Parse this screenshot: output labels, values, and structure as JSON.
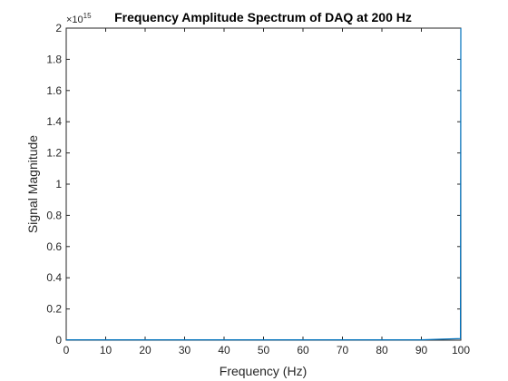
{
  "chart_data": {
    "type": "line",
    "title": "Frequency Amplitude Spectrum of DAQ at 200 Hz",
    "xlabel": "Frequency (Hz)",
    "ylabel": "Signal Magnitude",
    "exponent_label": "×10",
    "exponent_power": "15",
    "xlim": [
      0,
      100
    ],
    "ylim": [
      0,
      2
    ],
    "xticks": [
      0,
      10,
      20,
      30,
      40,
      50,
      60,
      70,
      80,
      90,
      100
    ],
    "yticks": [
      0,
      0.2,
      0.4,
      0.6,
      0.8,
      1,
      1.2,
      1.4,
      1.6,
      1.8,
      2
    ],
    "grid": false,
    "series": [
      {
        "x": [
          0,
          10,
          20,
          30,
          40,
          50,
          60,
          70,
          80,
          90,
          99.9,
          100
        ],
        "y": [
          0.002,
          0.002,
          0.002,
          0.002,
          0.002,
          0.002,
          0.002,
          0.002,
          0.002,
          0.002,
          0.01,
          2
        ]
      }
    ],
    "colors": {
      "line": "#0072BD",
      "axis": "#262626"
    }
  }
}
